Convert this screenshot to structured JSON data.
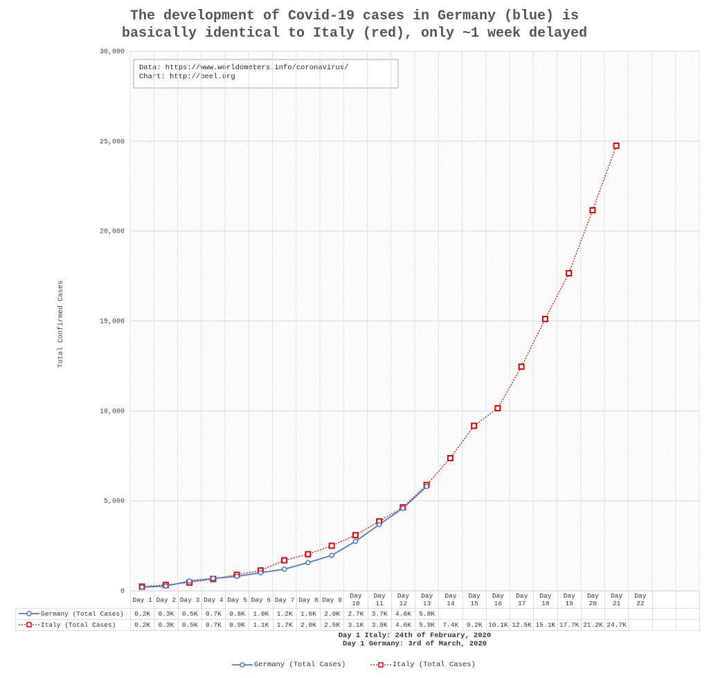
{
  "chart_data": {
    "type": "line",
    "title": [
      "The development of Covid-19 cases in Germany (blue) is",
      "basically identical to Italy (red), only ~1 week delayed"
    ],
    "annotation": [
      "Data: https://www.worldometers.info/coronavirus/",
      "Chart: http://beel.org"
    ],
    "y_label": "Total Confirmed Cases",
    "footnotes": [
      "Day 1 Italy: 24th of February, 2020",
      "Day 1 Germany: 3rd of March, 2020"
    ],
    "categories": [
      "Day 1",
      "Day 2",
      "Day 3",
      "Day 4",
      "Day 5",
      "Day 6",
      "Day 7",
      "Day 8",
      "Day 9",
      "Day 10",
      "Day 11",
      "Day 12",
      "Day 13",
      "Day 14",
      "Day 15",
      "Day 16",
      "Day 17",
      "Day 18",
      "Day 19",
      "Day 20",
      "Day 21",
      "Day 22"
    ],
    "series": [
      {
        "name": "Germany (Total Cases)",
        "color": "#4a7ac8",
        "marker": "circle",
        "dash": false,
        "values": [
          200,
          262,
          534,
          684,
          800,
          1000,
          1200,
          1565,
          1966,
          2745,
          3675,
          4585,
          5795,
          null,
          null,
          null,
          null,
          null,
          null,
          null,
          null,
          null
        ],
        "value_labels": [
          "0.2K",
          "0.3K",
          "0.5K",
          "0.7K",
          "0.8K",
          "1.0K",
          "1.2K",
          "1.6K",
          "2.0K",
          "2.7K",
          "3.7K",
          "4.6K",
          "5.8K",
          null,
          null,
          null,
          null,
          null,
          null,
          null,
          null,
          null
        ]
      },
      {
        "name": "Italy (Total Cases)",
        "color": "#e00000",
        "marker": "square",
        "dash": true,
        "values": [
          229,
          322,
          453,
          655,
          888,
          1128,
          1694,
          2036,
          2502,
          3089,
          3858,
          4636,
          5883,
          7375,
          9172,
          10149,
          12462,
          15113,
          17660,
          21157,
          24747,
          null
        ],
        "value_labels": [
          "0.2K",
          "0.3K",
          "0.5K",
          "0.7K",
          "0.9K",
          "1.1K",
          "1.7K",
          "2.0K",
          "2.5K",
          "3.1K",
          "3.9K",
          "4.6K",
          "5.9K",
          "7.4K",
          "9.2K",
          "10.1K",
          "12.5K",
          "15.1K",
          "17.7K",
          "21.2K",
          "24.7K",
          null
        ]
      }
    ],
    "ylim": [
      0,
      30000
    ],
    "yticks": [
      0,
      {
        "value": 5000,
        "label": "5,000"
      },
      {
        "value": 10000,
        "label": "10,000"
      },
      {
        "value": 15000,
        "label": "15,000"
      },
      {
        "value": 20000,
        "label": "20,000"
      },
      {
        "value": 25000,
        "label": "25,000"
      },
      {
        "value": 30000,
        "label": "30,000"
      }
    ],
    "grid": true
  }
}
